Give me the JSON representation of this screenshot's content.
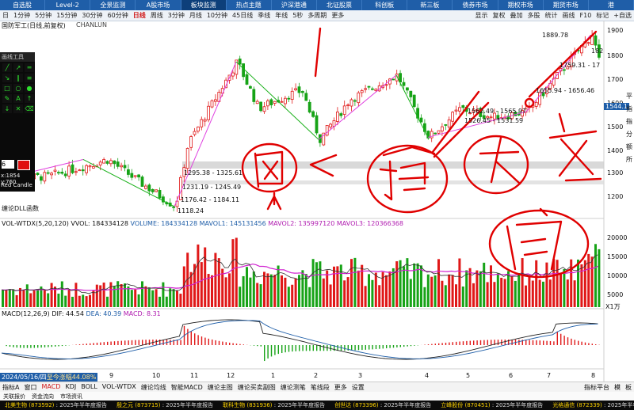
{
  "top_nav": [
    "自选股",
    "Level-2",
    "全景监测",
    "A股市场",
    "板块监测",
    "热点主题",
    "沪深港通",
    "北证股票",
    "科创板",
    "新三板",
    "债券市场",
    "期权市场",
    "期货市场",
    "港"
  ],
  "top_nav_active": 4,
  "toolbar": [
    "日",
    "1分钟",
    "5分钟",
    "15分钟",
    "30分钟",
    "60分钟",
    "日线",
    "周线",
    "3分钟",
    "月线",
    "10分钟",
    "45日线",
    "季线",
    "年线",
    "5秒",
    "多周期",
    "更多"
  ],
  "toolbar_active": 6,
  "toolbar_right": [
    "显示",
    "复权",
    "叠加",
    "多股",
    "统计",
    "画线",
    "F10",
    "标记",
    "+自选"
  ],
  "chart": {
    "title": "国防军工(日线,前复权)",
    "indicator": "CHANLUN",
    "drawing_panel_title": "画线工具",
    "line_width": "6",
    "coord_readout": "x:1854 y:760",
    "candle_tool": "Red Candle",
    "dll_label": "缠论DLL函数",
    "price_axis": [
      "1900",
      "1800",
      "1700",
      "1600",
      "1500",
      "1400",
      "1300",
      "1200"
    ],
    "current_price": "1544.1",
    "segment_labels": [
      "1889.78",
      "182",
      "1759.31 - 17",
      "1655.94 - 1656.46",
      "1562.49 - 1565.97",
      "1526.45 - 1531.59",
      "1295.38 - 1325.61",
      "1231.19 - 1245.49",
      "1176.42 - 1184.11",
      "1118.24"
    ],
    "right_side_text": [
      "平",
      "指",
      "指",
      "分",
      "额",
      "所"
    ],
    "colors": {
      "up": "#e01818",
      "down": "#17a317",
      "accent": "#d01818",
      "nav": "#1f5ea8"
    }
  },
  "volume": {
    "label": "VOL-WTDX(5,20,120)",
    "vvol": "VVOL: 184334128",
    "volume": "VOLUME: 184334128",
    "mavol1": "MAVOL1: 145131456",
    "mavol2": "MAVOL2: 135997120",
    "mavol3": "MAVOL3: 120366368",
    "axis": [
      "20000",
      "15000",
      "10000",
      "5000"
    ],
    "unit": "X1万"
  },
  "macd": {
    "label": "MACD(12,26,9)",
    "dif": "DIF: 44.54",
    "dea": "DEA: 40.39",
    "macd": "MACD: 8.31"
  },
  "x_axis": [
    "8",
    "9",
    "10",
    "11",
    "12",
    "1",
    "2",
    "3",
    "4",
    "5",
    "6",
    "7",
    "8"
  ],
  "date_badge": "2024/05/16/四",
  "date_badge_extra": "至今涨幅44.08%",
  "bottom_tabs": [
    "指标A",
    "窗口",
    "MACD",
    "KDJ",
    "BOLL",
    "VOL-WTDX",
    "缠论均线",
    "智能MACD",
    "缠论主图",
    "缠论买卖副图",
    "缠论测笔",
    "笔线段",
    "更多",
    "设置"
  ],
  "bottom_tabs_active": 2,
  "bottom_tabs_right": [
    "指标平台",
    "模",
    "板"
  ],
  "sub_tabs": [
    "关联报价",
    "资金流向",
    "市场资讯"
  ],
  "ticker": [
    {
      "name": "北美生物 (873592)",
      "text": "2025年半年度报告"
    },
    {
      "name": "殷之元 (873715)",
      "text": "2025年半年度报告"
    },
    {
      "name": "联科生物 (831936)",
      "text": "2025年半年度报告"
    },
    {
      "name": "创世达 (873396)",
      "text": "2025年半年度报告"
    },
    {
      "name": "立峰股份 (870451)",
      "text": "2025年半年度报告"
    },
    {
      "name": "光格通信 (872339)",
      "text": "2025年半年度报告"
    }
  ]
}
